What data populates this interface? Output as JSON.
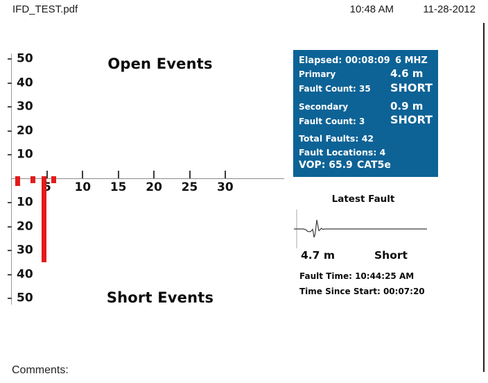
{
  "header": {
    "filename": "IFD_TEST.pdf",
    "time": "10:48 AM",
    "date": "11-28-2012"
  },
  "chart_data": {
    "type": "bar",
    "title_top": "Open Events",
    "title_bottom": "Short Events",
    "x_ticks": [
      5,
      10,
      15,
      20,
      25,
      30
    ],
    "y_ticks": [
      10,
      20,
      30,
      40,
      50
    ],
    "xlim": [
      0,
      38
    ],
    "ylim": [
      -50,
      50
    ],
    "x_unit": "m",
    "bar_color": "#e31b1b",
    "bars": [
      {
        "x": 0.9,
        "count": 3
      },
      {
        "x": 3.0,
        "count": 2
      },
      {
        "x": 4.6,
        "count": 35
      },
      {
        "x": 5.9,
        "count": 2
      }
    ],
    "layout_note": "short-event counts plotted downward from the zero axis; y labels mirrored above and below"
  },
  "status_panel": {
    "bg_color": "#0d6396",
    "elapsed": "Elapsed: 00:08:09",
    "frequency": "6 MHZ",
    "primary_label": "Primary",
    "primary_count": "Fault Count: 35",
    "primary_distance": "4.6 m",
    "primary_type": "SHORT",
    "secondary_label": "Secondary",
    "secondary_count": "Fault Count: 3",
    "secondary_distance": "0.9 m",
    "secondary_type": "SHORT",
    "total_faults": "Total Faults: 42",
    "fault_locations": "Fault Locations: 4",
    "vop": "VOP: 65.9",
    "cable_type": "CAT5e"
  },
  "latest_fault": {
    "title": "Latest Fault",
    "distance": "4.7 m",
    "type": "Short",
    "fault_time": "Fault Time: 10:44:25 AM",
    "time_since_start": "Time Since Start: 00:07:20"
  },
  "comments_label": "Comments:"
}
